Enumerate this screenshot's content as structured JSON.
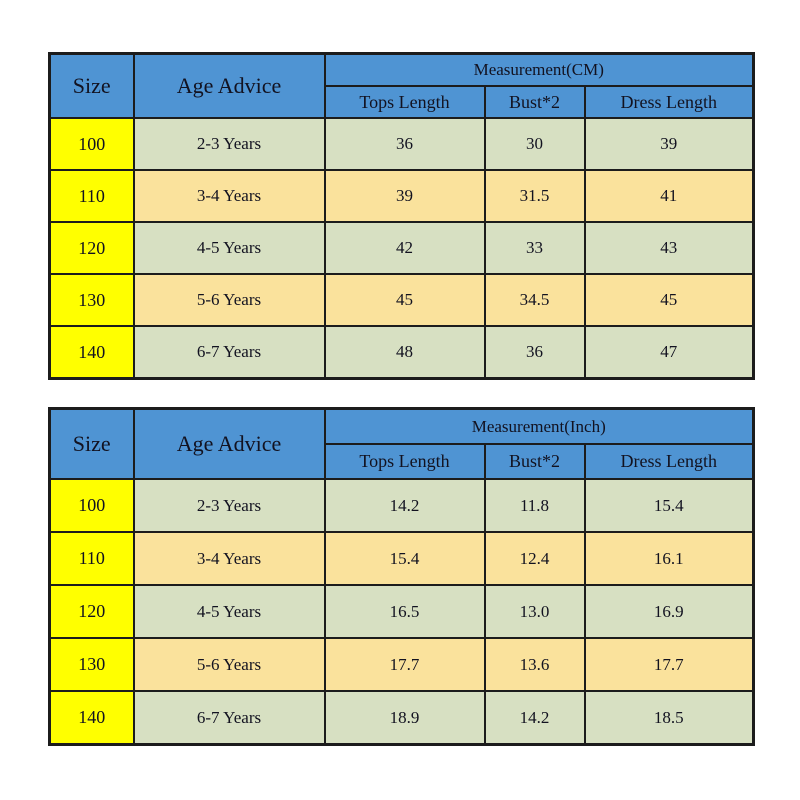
{
  "page": {
    "background": "#ffffff"
  },
  "colors": {
    "header_blue": "#4f94d3",
    "size_column_yellow": "#ffff00",
    "row_green": "#d7e0c2",
    "row_tan": "#fae29c",
    "border_black": "#1c1c1c"
  },
  "tables": [
    {
      "unit": "CM",
      "size_header": "Size",
      "age_header": "Age Advice",
      "measurement_header": "Measurement(CM)",
      "sub_headers": [
        "Tops Length",
        "Bust*2",
        "Dress Length"
      ],
      "rows": [
        {
          "size": "100",
          "age": "2-3 Years",
          "tops": "36",
          "bust": "30",
          "dress": "39"
        },
        {
          "size": "110",
          "age": "3-4 Years",
          "tops": "39",
          "bust": "31.5",
          "dress": "41"
        },
        {
          "size": "120",
          "age": "4-5 Years",
          "tops": "42",
          "bust": "33",
          "dress": "43"
        },
        {
          "size": "130",
          "age": "5-6 Years",
          "tops": "45",
          "bust": "34.5",
          "dress": "45"
        },
        {
          "size": "140",
          "age": "6-7 Years",
          "tops": "48",
          "bust": "36",
          "dress": "47"
        }
      ]
    },
    {
      "unit": "Inch",
      "size_header": "Size",
      "age_header": "Age Advice",
      "measurement_header": "Measurement(Inch)",
      "sub_headers": [
        "Tops Length",
        "Bust*2",
        "Dress Length"
      ],
      "rows": [
        {
          "size": "100",
          "age": "2-3 Years",
          "tops": "14.2",
          "bust": "11.8",
          "dress": "15.4"
        },
        {
          "size": "110",
          "age": "3-4 Years",
          "tops": "15.4",
          "bust": "12.4",
          "dress": "16.1"
        },
        {
          "size": "120",
          "age": "4-5 Years",
          "tops": "16.5",
          "bust": "13.0",
          "dress": "16.9"
        },
        {
          "size": "130",
          "age": "5-6 Years",
          "tops": "17.7",
          "bust": "13.6",
          "dress": "17.7"
        },
        {
          "size": "140",
          "age": "6-7 Years",
          "tops": "18.9",
          "bust": "14.2",
          "dress": "18.5"
        }
      ]
    }
  ],
  "chart_data": [
    {
      "type": "table",
      "title": "Measurement(CM)",
      "columns": [
        "Size",
        "Age Advice",
        "Tops Length",
        "Bust*2",
        "Dress Length"
      ],
      "rows": [
        [
          "100",
          "2-3 Years",
          36,
          30,
          39
        ],
        [
          "110",
          "3-4 Years",
          39,
          31.5,
          41
        ],
        [
          "120",
          "4-5 Years",
          42,
          33,
          43
        ],
        [
          "130",
          "5-6 Years",
          45,
          34.5,
          45
        ],
        [
          "140",
          "6-7 Years",
          48,
          36,
          47
        ]
      ]
    },
    {
      "type": "table",
      "title": "Measurement(Inch)",
      "columns": [
        "Size",
        "Age Advice",
        "Tops Length",
        "Bust*2",
        "Dress Length"
      ],
      "rows": [
        [
          "100",
          "2-3 Years",
          14.2,
          11.8,
          15.4
        ],
        [
          "110",
          "3-4 Years",
          15.4,
          12.4,
          16.1
        ],
        [
          "120",
          "4-5 Years",
          16.5,
          13.0,
          16.9
        ],
        [
          "130",
          "5-6 Years",
          17.7,
          13.6,
          17.7
        ],
        [
          "140",
          "6-7 Years",
          18.9,
          14.2,
          18.5
        ]
      ]
    }
  ]
}
